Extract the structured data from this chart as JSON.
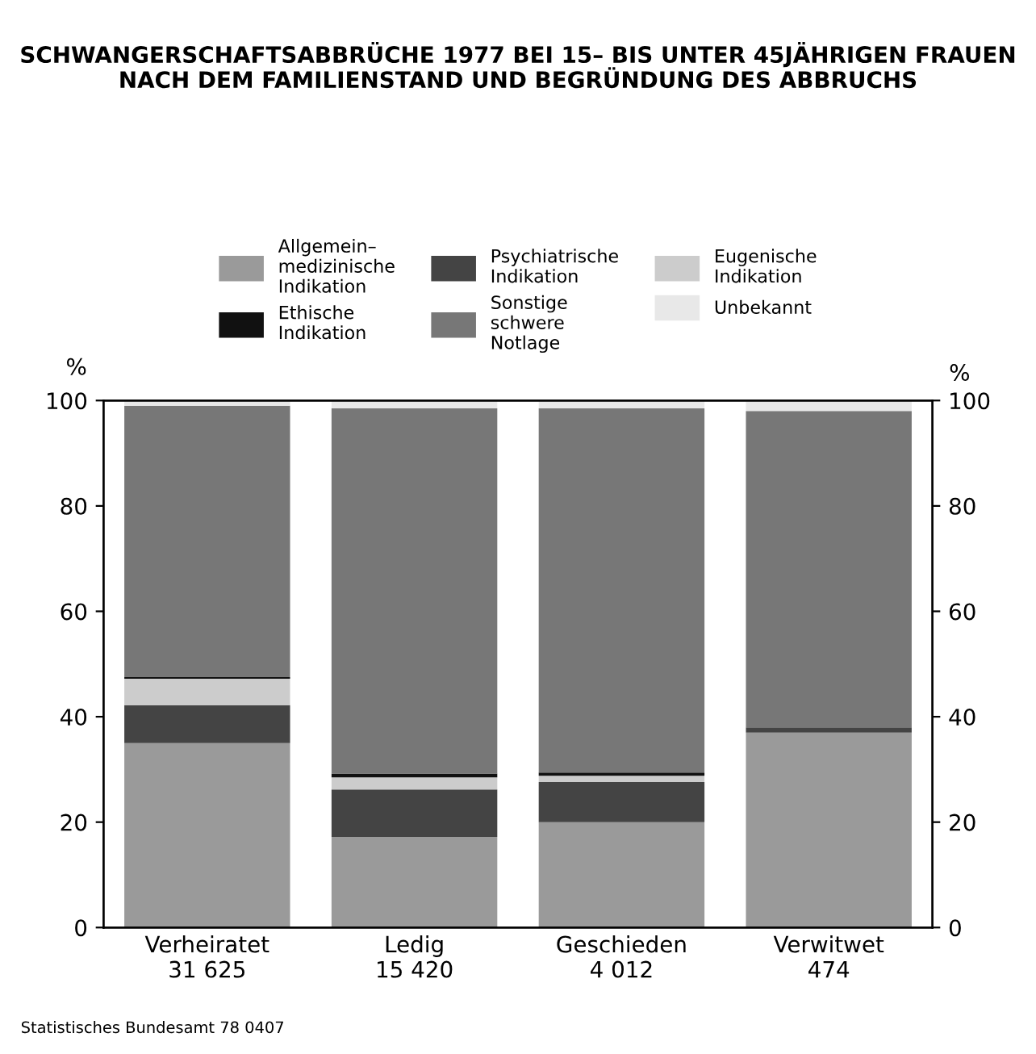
{
  "chart_data": {
    "type": "bar",
    "stacked": true,
    "title": "SCHWANGERSCHAFTSABBRÜCHE 1977 BEI 15– BIS UNTER 45JÄHRIGEN FRAUEN\nNACH DEM FAMILIENSTAND UND BEGRÜNDUNG DES ABBRUCHS",
    "ylabel": "%",
    "y2label": "%",
    "categories": [
      "Verheiratet\n31 625",
      "Ledig\n15 420",
      "Geschieden\n4 012",
      "Verwitwet\n474"
    ],
    "series": [
      {
        "name": "Allgemein–\nmedizinische\nIndikation",
        "color": "#9a9a9a",
        "values": [
          35,
          17.2,
          20,
          37
        ]
      },
      {
        "name": "Psychiatrische\nIndikation",
        "color": "#444444",
        "values": [
          7.2,
          9,
          7.6,
          1
        ]
      },
      {
        "name": "Eugenische\nIndikation",
        "color": "#cccccc",
        "values": [
          5,
          2.3,
          1.2,
          0
        ]
      },
      {
        "name": "Ethische\nIndikation",
        "color": "#111111",
        "values": [
          0.3,
          0.7,
          0.6,
          0
        ]
      },
      {
        "name": "Sonstige\nschwere\nNotlage",
        "color": "#777777",
        "values": [
          51.5,
          69.3,
          69.1,
          60
        ]
      },
      {
        "name": "Unbekannt",
        "color": "#e8e8e8",
        "values": [
          1,
          1.5,
          1.5,
          2
        ]
      }
    ],
    "ylim": [
      0,
      100
    ],
    "yticks": [
      0,
      20,
      40,
      60,
      80,
      100
    ],
    "y2lim": [
      0,
      100
    ],
    "y2ticks": [
      0,
      20,
      40,
      60,
      80,
      100
    ],
    "grid": false,
    "legend": "top",
    "annotations": [
      "Statistisches Bundesamt 78 0407"
    ]
  }
}
